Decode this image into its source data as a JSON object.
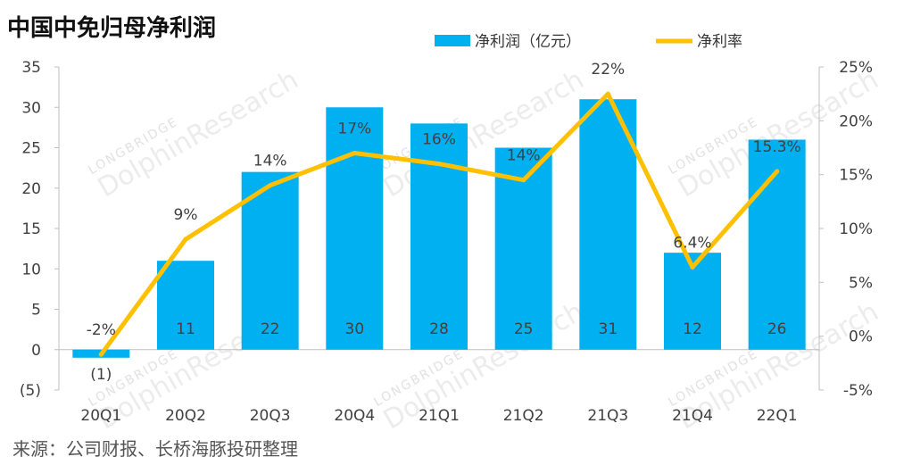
{
  "chart_data": {
    "type": "bar",
    "title": "中国中免归母净利润",
    "source": "来源：公司财报、长桥海豚投研整理",
    "categories": [
      "20Q1",
      "20Q2",
      "20Q3",
      "20Q4",
      "21Q1",
      "21Q2",
      "21Q3",
      "21Q4",
      "22Q1"
    ],
    "series": [
      {
        "name": "净利润（亿元）",
        "type": "bar",
        "axis": "left",
        "color": "#00b0f0",
        "values": [
          -1,
          11,
          22,
          30,
          28,
          25,
          31,
          12,
          26
        ],
        "labels": [
          "(1)",
          "11",
          "22",
          "30",
          "28",
          "25",
          "31",
          "12",
          "26"
        ]
      },
      {
        "name": "净利率",
        "type": "line",
        "axis": "right",
        "color": "#ffc000",
        "values": [
          -1.7,
          9,
          14,
          17,
          16,
          14.5,
          22.5,
          6.4,
          15.3
        ],
        "labels": [
          "-2%",
          "9%",
          "14%",
          "17%",
          "16%",
          "14%",
          "22%",
          "6.4%",
          "15.3%"
        ]
      }
    ],
    "y_left": {
      "ticks": [
        "(5)",
        "0",
        "5",
        "10",
        "15",
        "20",
        "25",
        "30",
        "35"
      ],
      "ylim": [
        -5,
        35
      ]
    },
    "y_right": {
      "ticks": [
        "-5%",
        "0%",
        "5%",
        "10%",
        "15%",
        "20%",
        "25%"
      ],
      "ylim": [
        -5,
        25
      ]
    },
    "legend": "top-right",
    "grid": false,
    "watermark": "LONGBRIDGE DolphinResearch"
  }
}
